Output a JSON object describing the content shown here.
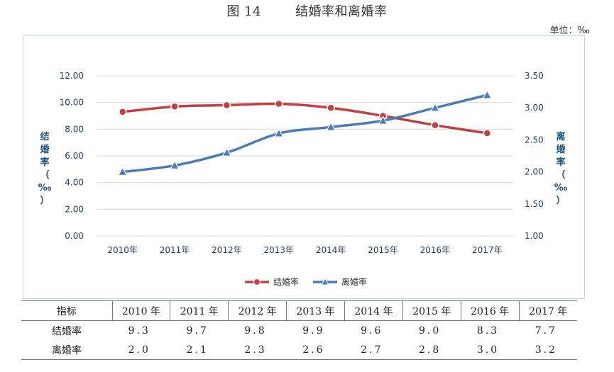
{
  "figure": {
    "number": "图 14",
    "title": "结婚率和离婚率",
    "unit": "单位：‰"
  },
  "chart_data": {
    "type": "line",
    "categories": [
      "2010年",
      "2011年",
      "2012年",
      "2013年",
      "2014年",
      "2015年",
      "2016年",
      "2017年"
    ],
    "series": [
      {
        "name": "结婚率",
        "axis": "left",
        "color": "#c0403f",
        "marker": "circle",
        "values": [
          9.3,
          9.7,
          9.8,
          9.9,
          9.6,
          9.0,
          8.3,
          7.7
        ]
      },
      {
        "name": "离婚率",
        "axis": "right",
        "color": "#4a7ab8",
        "marker": "triangle",
        "values": [
          2.0,
          2.1,
          2.3,
          2.6,
          2.7,
          2.8,
          3.0,
          3.2
        ]
      }
    ],
    "y_left": {
      "label": "结婚率（‰）",
      "ylim": [
        0,
        12
      ],
      "ticks": [
        "0.00",
        "2.00",
        "4.00",
        "6.00",
        "8.00",
        "10.00",
        "12.00"
      ]
    },
    "y_right": {
      "label": "离婚率（‰）",
      "ylim": [
        1,
        3.5
      ],
      "ticks": [
        "1.00",
        "1.50",
        "2.00",
        "2.50",
        "3.00",
        "3.50"
      ]
    },
    "grid": true,
    "legend": "bottom"
  },
  "table": {
    "header": [
      "指标",
      "2010 年",
      "2011 年",
      "2012 年",
      "2013 年",
      "2014 年",
      "2015 年",
      "2016 年",
      "2017 年"
    ],
    "rows": [
      {
        "label": "结婚率",
        "values": [
          "9.3",
          "9.7",
          "9.8",
          "9.9",
          "9.6",
          "9.0",
          "8.3",
          "7.7"
        ]
      },
      {
        "label": "离婚率",
        "values": [
          "2.0",
          "2.1",
          "2.3",
          "2.6",
          "2.7",
          "2.8",
          "3.0",
          "3.2"
        ]
      }
    ]
  }
}
